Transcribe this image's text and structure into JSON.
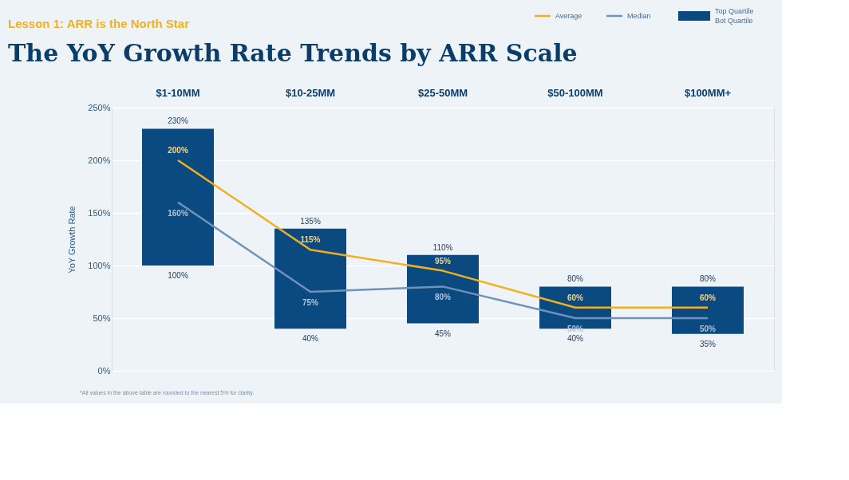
{
  "chart_data": {
    "type": "bar",
    "title": "The YoY Growth Rate Trends by ARR Scale",
    "subtitle": "Lesson 1: ARR is the North Star",
    "ylabel": "YoY Growth Rate",
    "categories": [
      "$1-10MM",
      "$10-25MM",
      "$25-50MM",
      "$50-100MM",
      "$100MM+"
    ],
    "series": [
      {
        "name": "Top Quartile",
        "color": "#0b4a80",
        "base": [
          100,
          40,
          45,
          40,
          35
        ],
        "values": [
          130,
          95,
          65,
          40,
          45
        ]
      },
      {
        "name": "Average",
        "type": "line",
        "color": "#f2b01e",
        "values": [
          200,
          115,
          95,
          60,
          60
        ],
        "value_labels": [
          "200%",
          "115%",
          "95%",
          "60%",
          "60%"
        ]
      },
      {
        "name": "Median",
        "type": "line",
        "color": "#6f93b8",
        "values": [
          160,
          75,
          80,
          50,
          50
        ],
        "value_labels": [
          "160%",
          "75%",
          "80%",
          "50%",
          "50%"
        ]
      }
    ],
    "ylim": [
      0,
      250
    ],
    "yticks": [
      {
        "value": 0,
        "label": "0%"
      },
      {
        "value": 50,
        "label": "50%"
      },
      {
        "value": 100,
        "label": "100%"
      },
      {
        "value": 150,
        "label": "150%"
      },
      {
        "value": 200,
        "label": "200%"
      },
      {
        "value": 250,
        "label": "250%"
      }
    ],
    "grid": "y",
    "legend": "top right",
    "annotations": [
      {
        "text": "230%",
        "x": "$1-10MM",
        "y": 230
      },
      {
        "text": "100%",
        "x": "$1-10MM",
        "y": 100
      },
      {
        "text": "135%",
        "x": "$10-25MM",
        "y": 135
      },
      {
        "text": "40%",
        "x": "$10-25MM",
        "y": 40
      },
      {
        "text": "110%",
        "x": "$25-50MM",
        "y": 110
      },
      {
        "text": "45%",
        "x": "$25-50MM",
        "y": 45
      },
      {
        "text": "80%",
        "x": "$50-100MM",
        "y": 80
      },
      {
        "text": "40%",
        "x": "$50-100MM",
        "y": 40
      },
      {
        "text": "80%",
        "x": "$100MM+",
        "y": 80
      },
      {
        "text": "35%",
        "x": "$100MM+",
        "y": 35
      },
      "Bot Quartile",
      "*All values in the above table are rounded to the nearest 5% for clarity."
    ]
  }
}
